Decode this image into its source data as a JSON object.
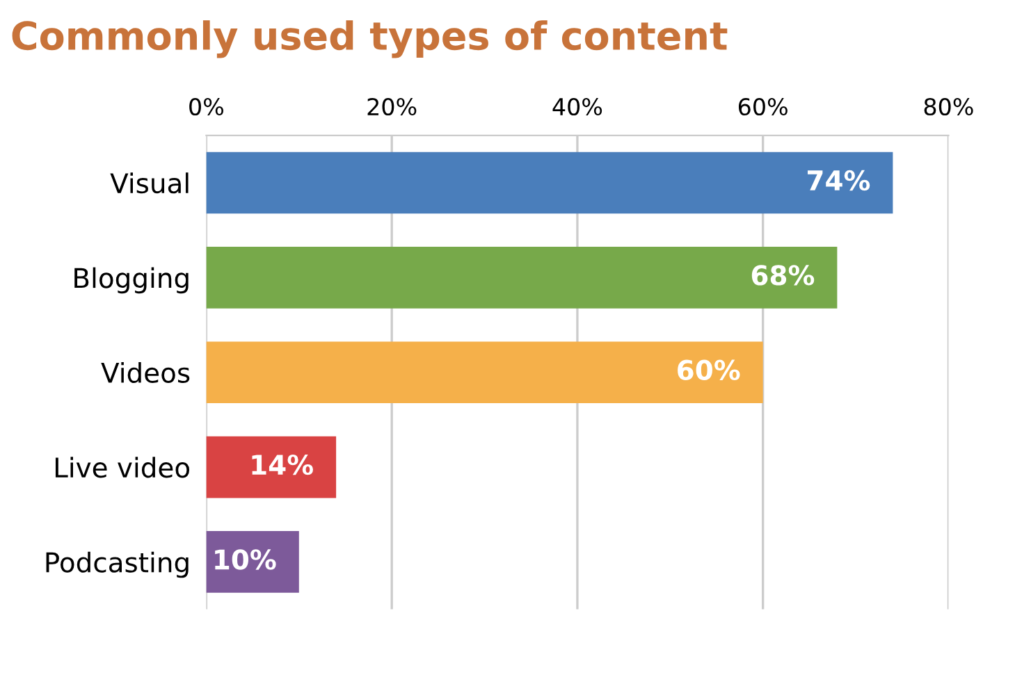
{
  "chart_data": {
    "type": "bar",
    "orientation": "horizontal",
    "title": "Commonly used types of content",
    "categories": [
      "Visual",
      "Blogging",
      "Videos",
      "Live video",
      "Podcasting"
    ],
    "values": [
      74,
      68,
      60,
      14,
      10
    ],
    "colors": [
      "#4a7ebb",
      "#77a94a",
      "#f5b04a",
      "#d94343",
      "#7d5a9a"
    ],
    "value_labels": [
      "74%",
      "68%",
      "60%",
      "14%",
      "10%"
    ],
    "xlim": [
      0,
      80
    ],
    "xticks": [
      {
        "value": 0,
        "label": "0%"
      },
      {
        "value": 20,
        "label": "20%"
      },
      {
        "value": 40,
        "label": "40%"
      },
      {
        "value": 60,
        "label": "60%"
      },
      {
        "value": 80,
        "label": "80%"
      }
    ],
    "grid": "x"
  }
}
